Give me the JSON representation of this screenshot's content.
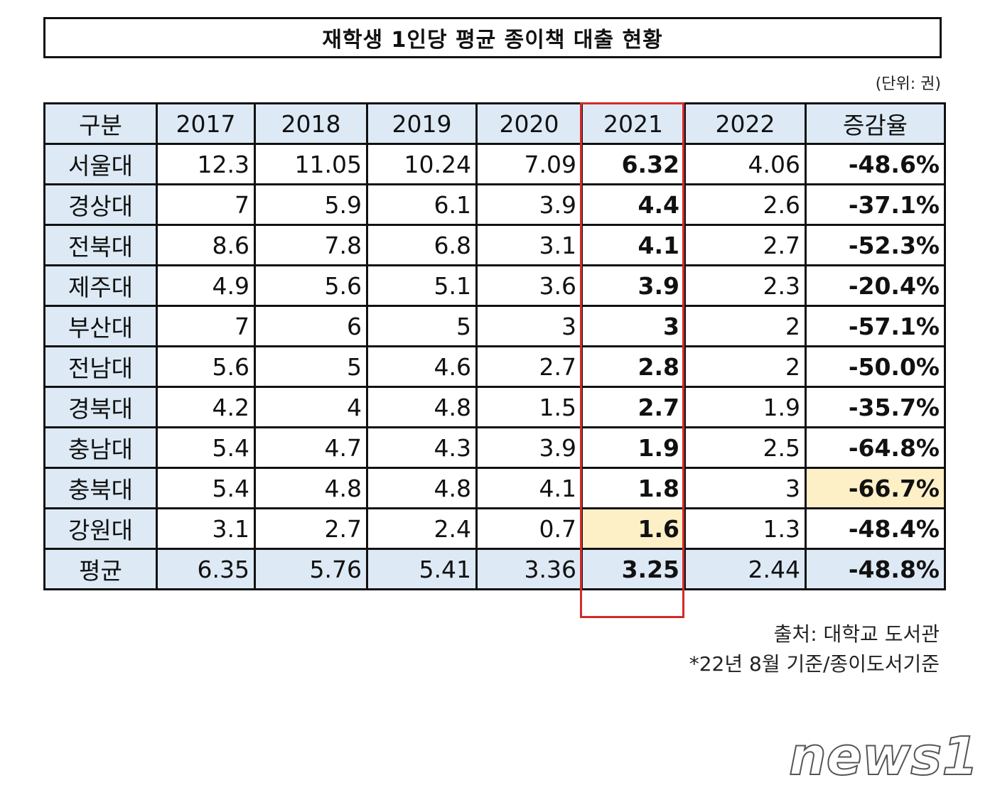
{
  "title": "재학생 1인당 평균 종이책 대출 현황",
  "unit": "(단위: 권)",
  "table": {
    "headers": [
      "구분",
      "2017",
      "2018",
      "2019",
      "2020",
      "2021",
      "2022",
      "증감율"
    ],
    "rows": [
      {
        "name": "서울대",
        "values": [
          "12.3",
          "11.05",
          "10.24",
          "7.09",
          "6.32",
          "4.06",
          "-48.6%"
        ]
      },
      {
        "name": "경상대",
        "values": [
          "7",
          "5.9",
          "6.1",
          "3.9",
          "4.4",
          "2.6",
          "-37.1%"
        ]
      },
      {
        "name": "전북대",
        "values": [
          "8.6",
          "7.8",
          "6.8",
          "3.1",
          "4.1",
          "2.7",
          "-52.3%"
        ]
      },
      {
        "name": "제주대",
        "values": [
          "4.9",
          "5.6",
          "5.1",
          "3.6",
          "3.9",
          "2.3",
          "-20.4%"
        ]
      },
      {
        "name": "부산대",
        "values": [
          "7",
          "6",
          "5",
          "3",
          "3",
          "2",
          "-57.1%"
        ]
      },
      {
        "name": "전남대",
        "values": [
          "5.6",
          "5",
          "4.6",
          "2.7",
          "2.8",
          "2",
          "-50.0%"
        ]
      },
      {
        "name": "경북대",
        "values": [
          "4.2",
          "4",
          "4.8",
          "1.5",
          "2.7",
          "1.9",
          "-35.7%"
        ]
      },
      {
        "name": "충남대",
        "values": [
          "5.4",
          "4.7",
          "4.3",
          "3.9",
          "1.9",
          "2.5",
          "-64.8%"
        ]
      },
      {
        "name": "충북대",
        "values": [
          "5.4",
          "4.8",
          "4.8",
          "4.1",
          "1.8",
          "3",
          "-66.7%"
        ]
      },
      {
        "name": "강원대",
        "values": [
          "3.1",
          "2.7",
          "2.4",
          "0.7",
          "1.6",
          "1.3",
          "-48.4%"
        ]
      }
    ],
    "average": {
      "name": "평균",
      "values": [
        "6.35",
        "5.76",
        "5.41",
        "3.36",
        "3.25",
        "2.44",
        "-48.8%"
      ]
    },
    "highlighted_column": "2021",
    "highlight_colors": {
      "header_bg": "#ddeaf5",
      "cell_highlight": "#fdefc6",
      "column_border": "#d42a2a"
    }
  },
  "source": "출처: 대학교 도서관",
  "note": "*22년 8월 기준/종이도서기준",
  "logo": "news1"
}
